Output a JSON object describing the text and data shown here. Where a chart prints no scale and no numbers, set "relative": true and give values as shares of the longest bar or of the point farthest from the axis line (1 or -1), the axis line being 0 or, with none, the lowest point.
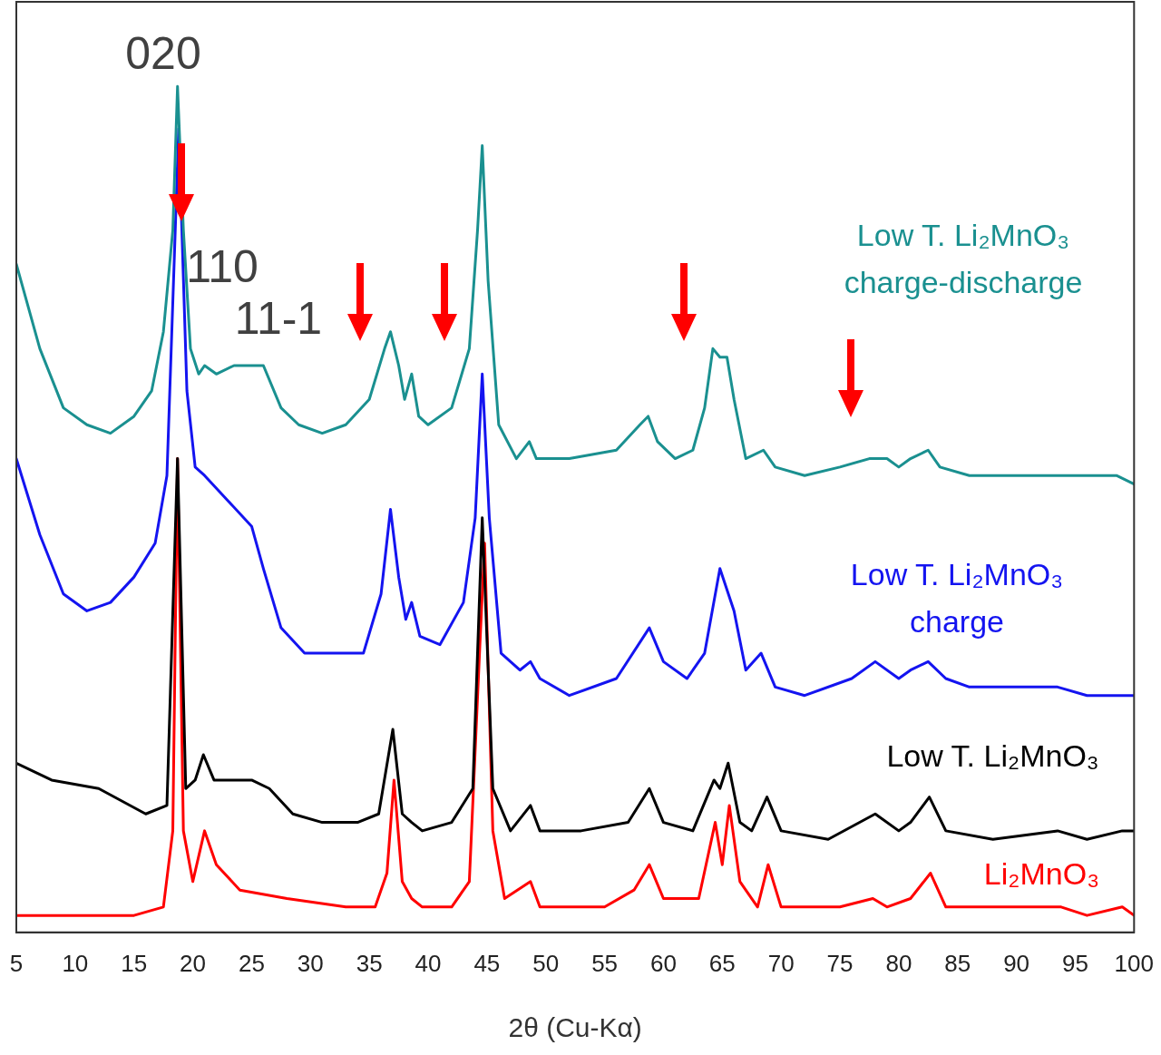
{
  "chart_data": {
    "type": "line",
    "relative": true,
    "xlabel": "2θ (Cu-Kα)",
    "xlim": [
      5,
      100
    ],
    "xticks": [
      5,
      10,
      15,
      20,
      25,
      30,
      35,
      40,
      45,
      50,
      55,
      60,
      65,
      70,
      75,
      80,
      85,
      90,
      95,
      100
    ],
    "grid": false,
    "legend": false,
    "marker": "none",
    "line_style": "solid",
    "tick_labels": "x",
    "annotations": [
      "020",
      "110",
      "11-1"
    ],
    "series": [
      {
        "name": "Low T. Li₂MnO₃ charge-discharge",
        "color": "#1a9090",
        "x": [
          5,
          7,
          9,
          11,
          13,
          15,
          16.5,
          17.5,
          18.3,
          18.7,
          19.2,
          19.8,
          20.5,
          21,
          22,
          23.5,
          25,
          26,
          27.5,
          29,
          31,
          33,
          35,
          36.3,
          36.8,
          37.5,
          38,
          38.6,
          39.2,
          40,
          42,
          43.5,
          44.2,
          44.6,
          45.1,
          46,
          47.5,
          48.6,
          49.2,
          52,
          56,
          58,
          58.7,
          59.5,
          61,
          62.5,
          63.5,
          64.2,
          64.8,
          65.4,
          66,
          67,
          68.5,
          69.5,
          72,
          75,
          77.5,
          79,
          80,
          81,
          82.5,
          83.5,
          86,
          90,
          93.5,
          96,
          98.5,
          100
        ],
        "values": [
          0.79,
          0.69,
          0.62,
          0.6,
          0.59,
          0.61,
          0.64,
          0.71,
          0.83,
          1.0,
          0.83,
          0.69,
          0.66,
          0.67,
          0.66,
          0.67,
          0.67,
          0.67,
          0.62,
          0.6,
          0.59,
          0.6,
          0.63,
          0.69,
          0.71,
          0.67,
          0.63,
          0.66,
          0.61,
          0.6,
          0.62,
          0.69,
          0.83,
          0.93,
          0.77,
          0.6,
          0.56,
          0.58,
          0.56,
          0.56,
          0.57,
          0.6,
          0.61,
          0.58,
          0.56,
          0.57,
          0.62,
          0.69,
          0.68,
          0.68,
          0.63,
          0.56,
          0.57,
          0.55,
          0.54,
          0.55,
          0.56,
          0.56,
          0.55,
          0.56,
          0.57,
          0.55,
          0.54,
          0.54,
          0.54,
          0.54,
          0.54,
          0.53
        ]
      },
      {
        "name": "Low T. Li₂MnO₃ charge",
        "color": "#1414f0",
        "x": [
          5,
          7,
          9,
          11,
          13,
          15,
          16.8,
          17.8,
          18.8,
          19.5,
          20.2,
          21,
          23,
          25,
          26,
          27.5,
          29.5,
          32,
          34.5,
          36,
          36.8,
          37.5,
          38.1,
          38.6,
          39.3,
          41,
          43,
          44,
          44.6,
          45.2,
          46.2,
          47.8,
          48.7,
          49.5,
          52,
          56,
          58.8,
          60,
          62,
          63.5,
          64.8,
          66,
          67,
          68.3,
          69.5,
          72,
          76,
          78,
          80,
          81,
          82.5,
          84,
          86,
          90,
          93.5,
          96,
          100
        ],
        "values": [
          0.56,
          0.47,
          0.4,
          0.38,
          0.39,
          0.42,
          0.46,
          0.54,
          0.95,
          0.64,
          0.55,
          0.54,
          0.51,
          0.48,
          0.43,
          0.36,
          0.33,
          0.33,
          0.33,
          0.4,
          0.5,
          0.42,
          0.37,
          0.39,
          0.35,
          0.34,
          0.39,
          0.49,
          0.66,
          0.49,
          0.33,
          0.31,
          0.32,
          0.3,
          0.28,
          0.3,
          0.36,
          0.32,
          0.3,
          0.33,
          0.43,
          0.38,
          0.31,
          0.33,
          0.29,
          0.28,
          0.3,
          0.32,
          0.3,
          0.31,
          0.32,
          0.3,
          0.29,
          0.29,
          0.29,
          0.28,
          0.28
        ]
      },
      {
        "name": "Low T. Li₂MnO₃",
        "color": "#000000",
        "x": [
          5,
          8,
          12,
          16,
          17.8,
          18.7,
          19.4,
          20.2,
          20.9,
          21.8,
          23.5,
          25,
          26.5,
          28.5,
          31,
          34,
          35.8,
          37,
          37.8,
          38.6,
          39.5,
          42,
          43.8,
          44.6,
          45.5,
          47,
          48.7,
          49.5,
          53,
          57,
          58.8,
          60,
          62.5,
          64.3,
          64.8,
          65.5,
          66.5,
          67.5,
          68.8,
          70,
          74,
          78,
          80,
          81,
          82.6,
          84,
          88,
          93.5,
          96,
          99,
          100
        ],
        "values": [
          0.2,
          0.18,
          0.17,
          0.14,
          0.15,
          0.56,
          0.17,
          0.18,
          0.21,
          0.18,
          0.18,
          0.18,
          0.17,
          0.14,
          0.13,
          0.13,
          0.14,
          0.24,
          0.14,
          0.13,
          0.12,
          0.13,
          0.17,
          0.49,
          0.17,
          0.12,
          0.15,
          0.12,
          0.12,
          0.13,
          0.17,
          0.13,
          0.12,
          0.18,
          0.17,
          0.2,
          0.13,
          0.12,
          0.16,
          0.12,
          0.11,
          0.14,
          0.12,
          0.13,
          0.16,
          0.12,
          0.11,
          0.12,
          0.11,
          0.12,
          0.12
        ]
      },
      {
        "name": "Li₂MnO₃",
        "color": "#ff0000",
        "x": [
          5,
          10,
          15,
          17.5,
          18.3,
          18.7,
          19.2,
          20,
          21,
          22,
          24,
          28,
          33,
          35.5,
          36.5,
          37.1,
          37.8,
          38.6,
          39.5,
          42,
          43.5,
          44.4,
          44.8,
          45.5,
          46.5,
          48.7,
          49.5,
          55,
          57.5,
          58.8,
          60,
          63,
          64.4,
          65,
          65.6,
          66.5,
          68,
          68.9,
          70,
          75,
          77.8,
          79,
          81,
          82.7,
          84,
          85.5,
          90,
          93.8,
          96,
          99,
          100
        ],
        "values": [
          0.02,
          0.02,
          0.02,
          0.03,
          0.12,
          0.56,
          0.12,
          0.06,
          0.12,
          0.08,
          0.05,
          0.04,
          0.03,
          0.03,
          0.07,
          0.18,
          0.06,
          0.04,
          0.03,
          0.03,
          0.06,
          0.34,
          0.46,
          0.12,
          0.04,
          0.06,
          0.03,
          0.03,
          0.05,
          0.08,
          0.04,
          0.04,
          0.13,
          0.08,
          0.15,
          0.06,
          0.03,
          0.08,
          0.03,
          0.03,
          0.04,
          0.03,
          0.04,
          0.07,
          0.03,
          0.03,
          0.03,
          0.03,
          0.02,
          0.03,
          0.02
        ]
      }
    ]
  }
}
